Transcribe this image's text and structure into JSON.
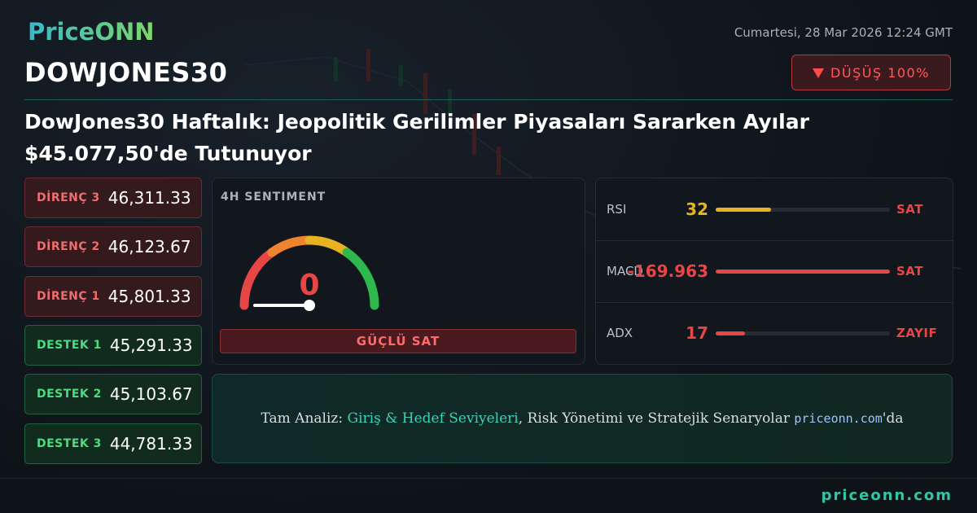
{
  "brand": "PriceONN",
  "datetime": "Cumartesi, 28 Mar 2026 12:24 GMT",
  "symbol": "DOWJONES30",
  "signal": "DÜŞÜŞ 100%",
  "headline": "DowJones30 Haftalık: Jeopolitik Gerilimler Piyasaları Sararken Ayılar $45.077,50'de Tutunuyor",
  "levels": [
    {
      "label": "DİRENÇ 3",
      "value": "46,311.33"
    },
    {
      "label": "DİRENÇ 2",
      "value": "46,123.67"
    },
    {
      "label": "DİRENÇ 1",
      "value": "45,801.33"
    },
    {
      "label": "DESTEK 1",
      "value": "45,291.33"
    },
    {
      "label": "DESTEK 2",
      "value": "45,103.67"
    },
    {
      "label": "DESTEK 3",
      "value": "44,781.33"
    }
  ],
  "sentiment": {
    "title": "4H SENTIMENT",
    "value": 0,
    "label": "GÜÇLÜ SAT"
  },
  "indicators": [
    {
      "name": "RSI",
      "value": 32,
      "signal": "SAT",
      "color": "#e8b321"
    },
    {
      "name": "MACD",
      "value": -169.963,
      "signal": "SAT",
      "color": "#e84545"
    },
    {
      "name": "ADX",
      "value": 17,
      "signal": "ZAYIF",
      "color": "#e84545"
    }
  ],
  "cta": {
    "prefix": "Tam Analiz: ",
    "link": "Giriş & Hedef Seviyeleri",
    "middle": ", Risk Yönetimi ve Stratejik Senaryolar ",
    "site": "priceonn.com",
    "suffix": "'da"
  },
  "footer": "priceonn.com"
}
